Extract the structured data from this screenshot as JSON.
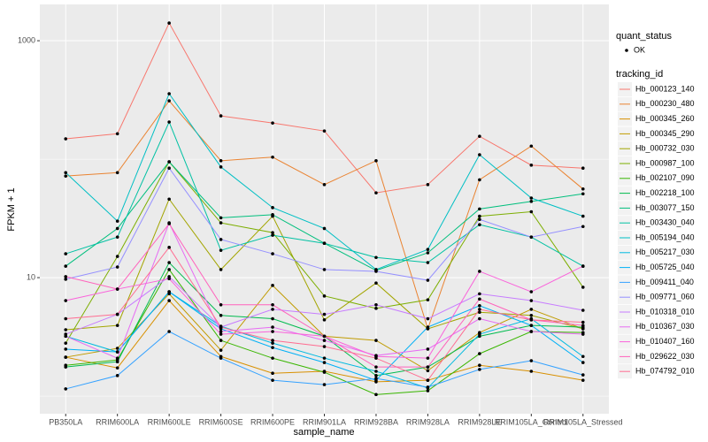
{
  "chart_data": {
    "type": "line",
    "x_label": "sample_name",
    "y_label": "FPKM + 1",
    "log_y": true,
    "grid": true,
    "categories": [
      "PB350LA",
      "RRIM600LA",
      "RRIM600LE",
      "RRIM600SE",
      "RRIM600PE",
      "RRIM901LA",
      "RRIM928BA",
      "RRIM928LA",
      "RRIM928LE",
      "RRIM105LA_Control",
      "RRIM105LA_Stressed"
    ],
    "ylim": [
      0.71,
      2025
    ],
    "yticks": [
      10,
      1000
    ],
    "y_minor_grid": [
      1,
      100
    ],
    "point_legend": {
      "title": "quant_status",
      "labels": [
        "OK"
      ],
      "color": "#000000"
    },
    "legend_title": "tracking_id",
    "series": [
      {
        "name": "Hb_000123_140",
        "color": "#F8766D",
        "values": [
          148.6,
          164,
          1410,
          232,
          202,
          173,
          52,
          61,
          156,
          89,
          84
        ]
      },
      {
        "name": "Hb_000230_480",
        "color": "#EA8331",
        "values": [
          72,
          77,
          311,
          97,
          104,
          61,
          97,
          3.7,
          67,
          129,
          56
        ]
      },
      {
        "name": "Hb_000345_260",
        "color": "#D89000",
        "values": [
          2.13,
          1.73,
          6.4,
          2.16,
          1.56,
          1.62,
          1.32,
          1.36,
          1.82,
          1.62,
          1.36
        ]
      },
      {
        "name": "Hb_000345_290",
        "color": "#C09B00",
        "values": [
          2.13,
          2.53,
          7.3,
          2.44,
          8.6,
          3.2,
          2.95,
          1.64,
          3.44,
          5.4,
          3.7
        ]
      },
      {
        "name": "Hb_000732_030",
        "color": "#A3A500",
        "values": [
          3.63,
          3.95,
          46,
          11.7,
          33,
          4.4,
          9.0,
          3.7,
          5.1,
          4.8,
          3.7
        ]
      },
      {
        "name": "Hb_000987_100",
        "color": "#7CAE00",
        "values": [
          2.8,
          15.1,
          95,
          29,
          24,
          7.0,
          5.5,
          6.5,
          33,
          36,
          8.3
        ]
      },
      {
        "name": "Hb_002107_090",
        "color": "#39B600",
        "values": [
          1.82,
          2.02,
          11.7,
          2.95,
          2.09,
          1.59,
          1.03,
          1.11,
          2.28,
          3.51,
          3.44
        ]
      },
      {
        "name": "Hb_002218_100",
        "color": "#00BB4E",
        "values": [
          1.76,
          1.95,
          13.4,
          4.8,
          4.5,
          3.2,
          1.49,
          1.76,
          3.2,
          3.95,
          3.82
        ]
      },
      {
        "name": "Hb_003077_150",
        "color": "#00BF7D",
        "values": [
          12.5,
          26,
          95,
          32,
          34,
          19.5,
          11.5,
          16.2,
          38,
          44,
          51
        ]
      },
      {
        "name": "Hb_003430_040",
        "color": "#00C1A3",
        "values": [
          15.9,
          22,
          206,
          17,
          22.8,
          19.5,
          14.8,
          13.4,
          28,
          22,
          12.5
        ]
      },
      {
        "name": "Hb_005194_040",
        "color": "#00BFC4",
        "values": [
          77,
          30,
          357,
          86,
          39,
          26,
          11.7,
          17.3,
          109,
          47,
          33
        ]
      },
      {
        "name": "Hb_005217_030",
        "color": "#00BAE0",
        "values": [
          3.2,
          2.36,
          7.6,
          3.89,
          2.8,
          2.09,
          1.62,
          1.17,
          3.33,
          4.5,
          2.16
        ]
      },
      {
        "name": "Hb_005725_040",
        "color": "#00B0F6",
        "values": [
          2.49,
          2.36,
          7.6,
          3.7,
          2.57,
          1.92,
          1.36,
          3.82,
          5.8,
          3.95,
          1.92
        ]
      },
      {
        "name": "Hb_009411_040",
        "color": "#35A2FF",
        "values": [
          1.15,
          1.49,
          3.51,
          2.09,
          1.36,
          1.25,
          1.41,
          1.19,
          1.68,
          1.99,
          1.51
        ]
      },
      {
        "name": "Hb_009771_060",
        "color": "#9590FF",
        "values": [
          9.7,
          12.3,
          84,
          21,
          15.9,
          11.7,
          11.3,
          9.5,
          31,
          22,
          27
        ]
      },
      {
        "name": "Hb_010318_010",
        "color": "#C77CFF",
        "values": [
          3.33,
          4.9,
          10.2,
          3.82,
          5.4,
          4.9,
          5.9,
          4.5,
          7.3,
          6.4,
          5.3
        ]
      },
      {
        "name": "Hb_010367_030",
        "color": "#E76BF3",
        "values": [
          3.2,
          2.09,
          29,
          3.51,
          3.82,
          2.95,
          2.2,
          2.49,
          4.5,
          3.51,
          3.33
        ]
      },
      {
        "name": "Hb_010407_160",
        "color": "#FA62DB",
        "values": [
          6.4,
          8.0,
          9.8,
          3.33,
          3.51,
          3.2,
          2.16,
          2.09,
          11.3,
          7.6,
          12.5
        ]
      },
      {
        "name": "Hb_029622_030",
        "color": "#FF62BC",
        "values": [
          10.2,
          8.0,
          28.5,
          5.9,
          5.9,
          3.2,
          1.76,
          1.76,
          6.6,
          4.4,
          3.95
        ]
      },
      {
        "name": "Hb_074792_010",
        "color": "#FF6C91",
        "values": [
          4.5,
          4.9,
          18,
          3.82,
          2.95,
          2.62,
          2.09,
          1.36,
          5.4,
          4.4,
          4.2
        ]
      }
    ]
  }
}
